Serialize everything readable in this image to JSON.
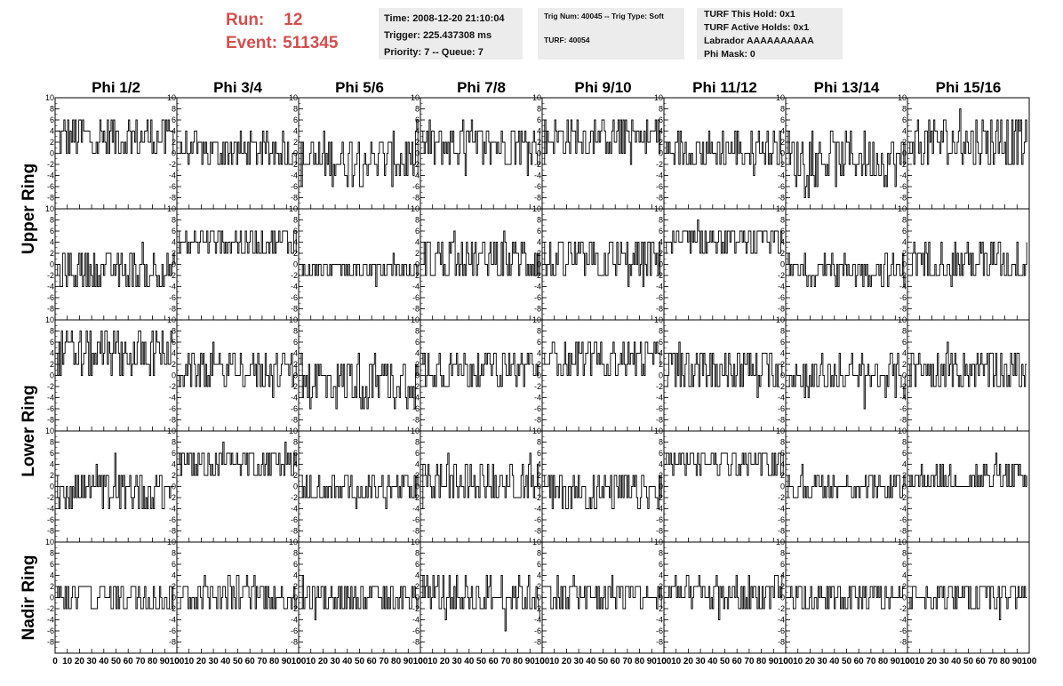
{
  "header": {
    "run_label": "Run:",
    "run_value": "12",
    "event_label": "Event:",
    "event_value": "511345",
    "time_box": {
      "time": "Time: 2008-12-20 21:10:04",
      "trigger": "Trigger: 225.437308 ms",
      "priority": "Priority: 7 -- Queue: 7"
    },
    "trig_box": {
      "trig": "Trig Num: 40045 -- Trig Type: Soft",
      "turf": "TURF: 40054"
    },
    "turf_box": {
      "this_hold": "TURF This Hold: 0x1",
      "active_holds": "TURF Active Holds: 0x1",
      "labrador": "Labrador AAAAAAAAAA",
      "phi_mask": "Phi Mask: 0"
    }
  },
  "colors": {
    "accent": "#d24f4f",
    "box_bg": "#ececec",
    "trace": "#000000"
  },
  "chart_data": {
    "type": "line",
    "layout": "grid",
    "column_labels": [
      "Phi 1/2",
      "Phi 3/4",
      "Phi 5/6",
      "Phi 7/8",
      "Phi 9/10",
      "Phi 11/12",
      "Phi 13/14",
      "Phi 15/16"
    ],
    "row_labels": [
      "Upper Ring",
      "Lower Ring",
      "Nadir Ring"
    ],
    "panel_rows": 5,
    "xlim": [
      0,
      100
    ],
    "ylim": [
      -10,
      10
    ],
    "xticks": [
      0,
      10,
      20,
      30,
      40,
      50,
      60,
      70,
      80,
      90,
      100
    ],
    "yticks": [
      -8,
      -6,
      -4,
      -2,
      0,
      2,
      4,
      6,
      8,
      10
    ],
    "xtick_labels": [
      "0",
      "10",
      "20",
      "30",
      "40",
      "50",
      "60",
      "70",
      "80",
      "90",
      "100"
    ],
    "ytick_labels": [
      "-8",
      "-6",
      "-4",
      "-2",
      "0",
      "2",
      "4",
      "6",
      "8",
      "10"
    ],
    "trace_points": 96,
    "panels": [
      [
        {
          "offset": 3.0,
          "noise": 4.0
        },
        {
          "offset": 0.5,
          "noise": 3.0
        },
        {
          "offset": -1.0,
          "noise": 4.5
        },
        {
          "offset": 1.5,
          "noise": 4.0
        },
        {
          "offset": 3.0,
          "noise": 3.5
        },
        {
          "offset": 0.5,
          "noise": 3.5
        },
        {
          "offset": -1.0,
          "noise": 4.5
        },
        {
          "offset": 2.0,
          "noise": 4.5
        }
      ],
      [
        {
          "offset": -1.0,
          "noise": 3.0
        },
        {
          "offset": 4.0,
          "noise": 2.5
        },
        {
          "offset": -1.0,
          "noise": 2.0
        },
        {
          "offset": 1.0,
          "noise": 4.0
        },
        {
          "offset": 0.5,
          "noise": 4.0
        },
        {
          "offset": 4.0,
          "noise": 2.5
        },
        {
          "offset": -1.0,
          "noise": 2.5
        },
        {
          "offset": 0.5,
          "noise": 3.5
        }
      ],
      [
        {
          "offset": 4.0,
          "noise": 4.0
        },
        {
          "offset": 1.0,
          "noise": 3.0
        },
        {
          "offset": -1.0,
          "noise": 4.5
        },
        {
          "offset": 1.5,
          "noise": 3.5
        },
        {
          "offset": 3.0,
          "noise": 3.0
        },
        {
          "offset": 1.0,
          "noise": 3.5
        },
        {
          "offset": 0.0,
          "noise": 3.5
        },
        {
          "offset": 1.0,
          "noise": 3.5
        }
      ],
      [
        {
          "offset": -0.5,
          "noise": 3.5
        },
        {
          "offset": 4.5,
          "noise": 2.5
        },
        {
          "offset": -0.5,
          "noise": 2.5
        },
        {
          "offset": 1.0,
          "noise": 3.5
        },
        {
          "offset": -1.0,
          "noise": 3.5
        },
        {
          "offset": 4.5,
          "noise": 2.5
        },
        {
          "offset": 0.0,
          "noise": 2.0
        },
        {
          "offset": 1.5,
          "noise": 2.5
        }
      ],
      [
        {
          "offset": 0.0,
          "noise": 3.0
        },
        {
          "offset": 0.5,
          "noise": 3.0
        },
        {
          "offset": 0.0,
          "noise": 3.0
        },
        {
          "offset": 0.5,
          "noise": 3.5
        },
        {
          "offset": 0.5,
          "noise": 3.0
        },
        {
          "offset": 0.5,
          "noise": 3.0
        },
        {
          "offset": 0.0,
          "noise": 2.5
        },
        {
          "offset": 0.5,
          "noise": 2.5
        }
      ]
    ]
  }
}
